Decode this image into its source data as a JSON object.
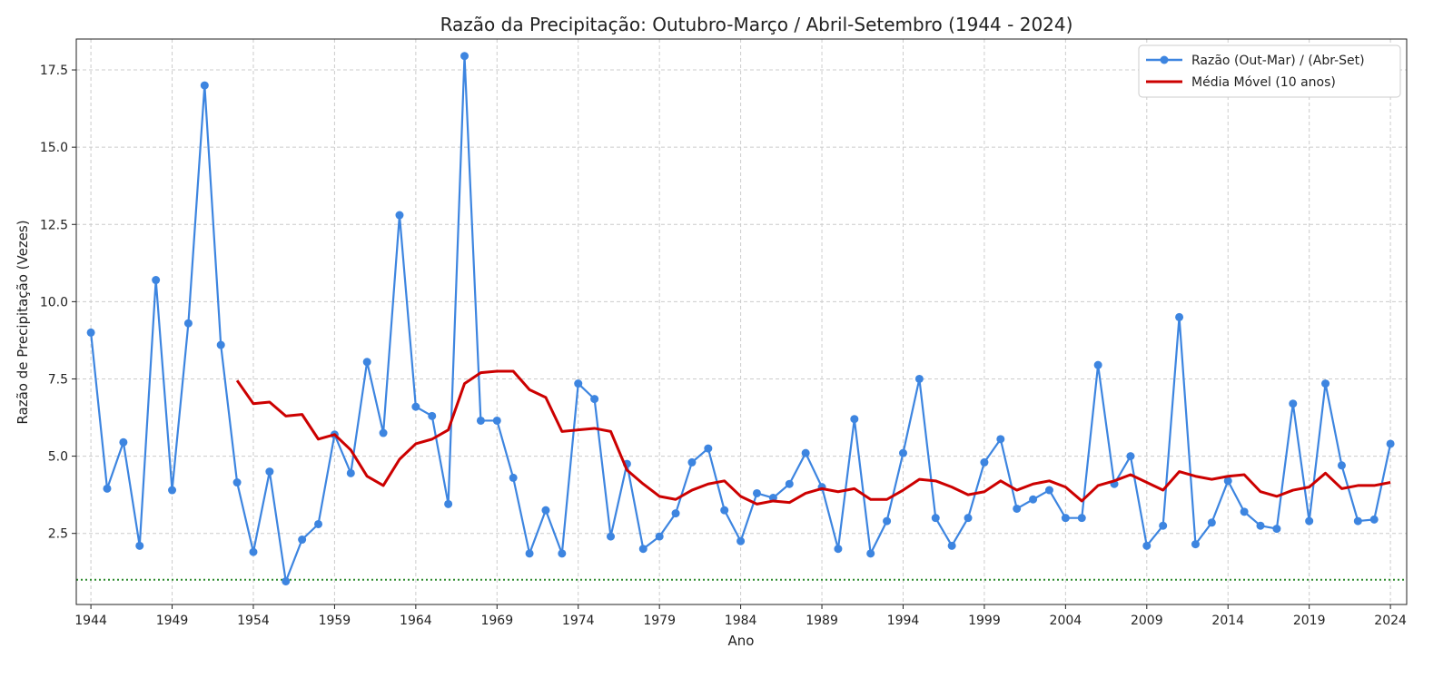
{
  "chart_data": {
    "type": "line",
    "title": "Razão da Precipitação: Outubro-Março / Abril-Setembro (1944 - 2024)",
    "xlabel": "Ano",
    "ylabel": "Razão de Precipitação (Vezes)",
    "xlim": [
      1943.1,
      2025.0
    ],
    "ylim": [
      0.2,
      18.5
    ],
    "xticks": [
      1944,
      1949,
      1954,
      1959,
      1964,
      1969,
      1974,
      1979,
      1984,
      1989,
      1994,
      1999,
      2004,
      2009,
      2014,
      2019,
      2024
    ],
    "xtick_labels": [
      "1944",
      "1949",
      "1954",
      "1959",
      "1964",
      "1969",
      "1974",
      "1979",
      "1984",
      "1989",
      "1994",
      "1999",
      "2004",
      "2009",
      "2014",
      "2019",
      "2024"
    ],
    "yticks": [
      2.5,
      5.0,
      7.5,
      10.0,
      12.5,
      15.0,
      17.5
    ],
    "ytick_labels": [
      "2.5",
      "5.0",
      "7.5",
      "10.0",
      "12.5",
      "15.0",
      "17.5"
    ],
    "grid": true,
    "legend_position": "top-right",
    "reference_line": {
      "y": 1.0,
      "color": "#2e8b2e",
      "style": "dotted"
    },
    "series": [
      {
        "name": "Razão (Out-Mar) / (Abr-Set)",
        "color": "#3d85e0",
        "marker": "circle",
        "x": [
          1944,
          1945,
          1946,
          1947,
          1948,
          1949,
          1950,
          1951,
          1952,
          1953,
          1954,
          1955,
          1956,
          1957,
          1958,
          1959,
          1960,
          1961,
          1962,
          1963,
          1964,
          1965,
          1966,
          1967,
          1968,
          1969,
          1970,
          1971,
          1972,
          1973,
          1974,
          1975,
          1976,
          1977,
          1978,
          1979,
          1980,
          1981,
          1982,
          1983,
          1984,
          1985,
          1986,
          1987,
          1988,
          1989,
          1990,
          1991,
          1992,
          1993,
          1994,
          1995,
          1996,
          1997,
          1998,
          1999,
          2000,
          2001,
          2002,
          2003,
          2004,
          2005,
          2006,
          2007,
          2008,
          2009,
          2010,
          2011,
          2012,
          2013,
          2014,
          2015,
          2016,
          2017,
          2018,
          2019,
          2020,
          2021,
          2022,
          2023,
          2024
        ],
        "values": [
          9.0,
          3.95,
          5.45,
          2.1,
          10.7,
          3.9,
          9.3,
          17.0,
          8.6,
          4.15,
          1.9,
          4.5,
          0.95,
          2.3,
          2.8,
          5.7,
          4.45,
          8.05,
          5.75,
          12.8,
          6.6,
          6.3,
          3.45,
          17.95,
          6.15,
          6.15,
          4.3,
          1.85,
          3.25,
          1.85,
          7.35,
          6.85,
          2.4,
          4.75,
          2.0,
          2.4,
          3.15,
          4.8,
          5.25,
          3.25,
          2.25,
          3.8,
          3.65,
          4.1,
          5.1,
          4.0,
          2.0,
          6.2,
          1.85,
          2.9,
          5.1,
          7.5,
          3.0,
          2.1,
          3.0,
          4.8,
          5.55,
          3.3,
          3.6,
          3.9,
          3.0,
          3.0,
          7.95,
          4.1,
          5.0,
          2.1,
          2.75,
          9.5,
          2.15,
          2.85,
          4.2,
          3.2,
          2.75,
          2.65,
          6.7,
          2.9,
          7.35,
          4.7,
          2.9,
          2.95,
          5.4
        ]
      },
      {
        "name": "Média Móvel (10 anos)",
        "color": "#cc0000",
        "marker": "none",
        "x": [
          1953,
          1954,
          1955,
          1956,
          1957,
          1958,
          1959,
          1960,
          1961,
          1962,
          1963,
          1964,
          1965,
          1966,
          1967,
          1968,
          1969,
          1970,
          1971,
          1972,
          1973,
          1974,
          1975,
          1976,
          1977,
          1978,
          1979,
          1980,
          1981,
          1982,
          1983,
          1984,
          1985,
          1986,
          1987,
          1988,
          1989,
          1990,
          1991,
          1992,
          1993,
          1994,
          1995,
          1996,
          1997,
          1998,
          1999,
          2000,
          2001,
          2002,
          2003,
          2004,
          2005,
          2006,
          2007,
          2008,
          2009,
          2010,
          2011,
          2012,
          2013,
          2014,
          2015,
          2016,
          2017,
          2018,
          2019,
          2020,
          2021,
          2022,
          2023,
          2024
        ],
        "values": [
          7.45,
          6.7,
          6.75,
          6.3,
          6.35,
          5.55,
          5.7,
          5.2,
          4.35,
          4.05,
          4.9,
          5.4,
          5.55,
          5.85,
          7.35,
          7.7,
          7.75,
          7.75,
          7.15,
          6.9,
          5.8,
          5.85,
          5.9,
          5.8,
          4.55,
          4.1,
          3.7,
          3.6,
          3.9,
          4.1,
          4.2,
          3.7,
          3.45,
          3.55,
          3.5,
          3.8,
          3.95,
          3.85,
          3.95,
          3.6,
          3.6,
          3.9,
          4.25,
          4.2,
          4.0,
          3.75,
          3.85,
          4.2,
          3.9,
          4.1,
          4.2,
          4.0,
          3.55,
          4.05,
          4.2,
          4.4,
          4.15,
          3.9,
          4.5,
          4.35,
          4.25,
          4.35,
          4.4,
          3.85,
          3.7,
          3.9,
          4.0,
          4.45,
          3.95,
          4.05,
          4.05,
          4.15
        ]
      }
    ]
  }
}
